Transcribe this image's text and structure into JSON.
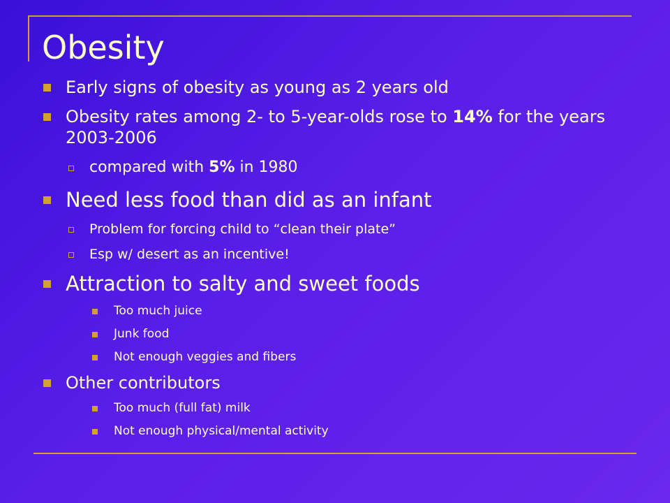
{
  "slide": {
    "title": "Obesity",
    "bullets": [
      {
        "text": "Early signs of obesity as young as 2 years old"
      },
      {
        "pre": "Obesity rates among 2- to 5-year-olds rose to ",
        "bold": "14%",
        "post": " for the years 2003-2006"
      },
      {
        "pre": "compared with ",
        "bold": "5%",
        "post": " in 1980"
      },
      {
        "text": "Need less food than did as an infant"
      },
      {
        "text": "Problem for forcing child to “clean their plate”"
      },
      {
        "text": "Esp w/ desert as an incentive!"
      },
      {
        "text": "Attraction to salty and sweet foods"
      },
      {
        "text": "Too much juice"
      },
      {
        "text": "Junk food"
      },
      {
        "text": "Not enough veggies and fibers"
      },
      {
        "text": "Other contributors"
      },
      {
        "text": "Too much (full fat) milk"
      },
      {
        "text": "Not enough physical/mental activity"
      }
    ]
  },
  "colors": {
    "background": "#4a18e0",
    "text": "#ffffcc",
    "accent": "#d4a030"
  }
}
